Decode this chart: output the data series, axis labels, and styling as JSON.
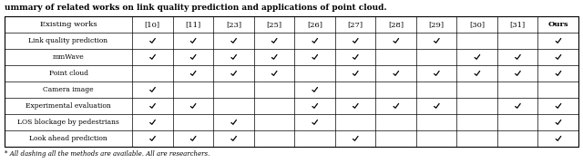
{
  "title": "ummary of related works on link quality prediction and applications of point cloud.",
  "col_headers": [
    "Existing works",
    "[10]",
    "[11]",
    "[23]",
    "[25]",
    "[26]",
    "[27]",
    "[28]",
    "[29]",
    "[30]",
    "[31]",
    "Ours"
  ],
  "row_labels": [
    "Link quality prediction",
    "mmWave",
    "Point cloud",
    "Camera image",
    "Experimental evaluation",
    "LOS blockage by pedestrians",
    "Look ahead prediction"
  ],
  "checkmarks": [
    [
      1,
      1,
      1,
      1,
      1,
      1,
      1,
      1,
      0,
      0,
      1
    ],
    [
      1,
      1,
      1,
      1,
      1,
      1,
      0,
      0,
      1,
      1,
      1
    ],
    [
      0,
      1,
      1,
      1,
      0,
      1,
      1,
      1,
      1,
      1,
      1
    ],
    [
      1,
      0,
      0,
      0,
      1,
      0,
      0,
      0,
      0,
      0,
      0
    ],
    [
      1,
      1,
      0,
      0,
      1,
      1,
      1,
      1,
      0,
      1,
      1
    ],
    [
      1,
      0,
      1,
      0,
      1,
      0,
      0,
      0,
      0,
      0,
      1
    ],
    [
      1,
      1,
      1,
      0,
      0,
      1,
      0,
      0,
      0,
      0,
      1
    ]
  ],
  "footnote": "* All dashing all the methods are available. All are researchers.",
  "col_widths": [
    2.2,
    0.7,
    0.7,
    0.7,
    0.7,
    0.7,
    0.7,
    0.7,
    0.7,
    0.7,
    0.7,
    0.7
  ],
  "font_size_header": 6.0,
  "font_size_row_label": 5.5,
  "font_size_check": 7.5,
  "font_size_title": 6.5,
  "font_size_footnote": 5.0
}
